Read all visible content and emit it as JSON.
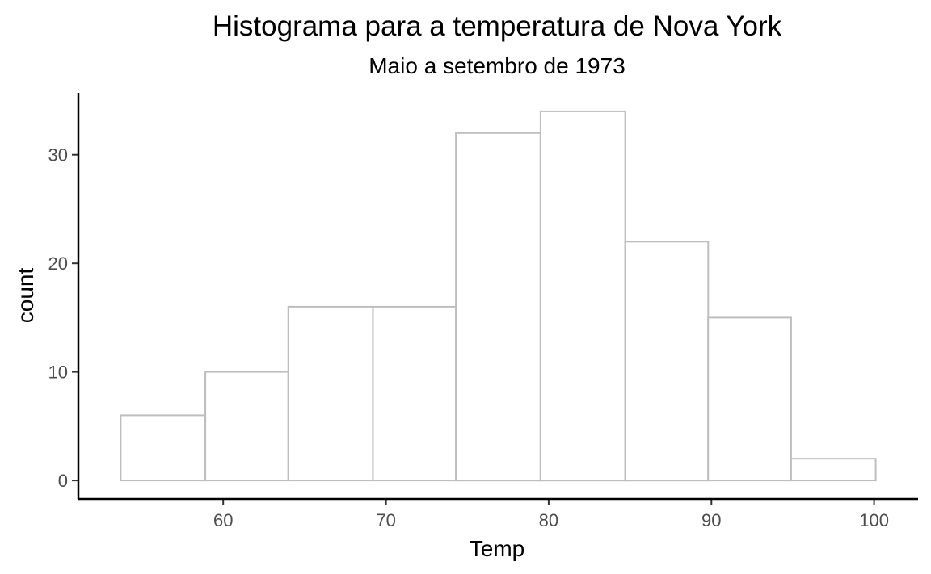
{
  "chart_data": {
    "type": "bar",
    "title": "Histograma para a temperatura de Nova York",
    "subtitle": "Maio a setembro de 1973",
    "xlabel": "Temp",
    "ylabel": "count",
    "bin_edges": [
      53.7,
      58.9,
      64.0,
      69.2,
      74.3,
      79.5,
      84.7,
      89.8,
      94.9,
      100.1
    ],
    "values": [
      6,
      10,
      16,
      16,
      32,
      34,
      22,
      15,
      2
    ],
    "xlim": [
      51.1,
      102.7
    ],
    "ylim": [
      -1.7,
      35.7
    ],
    "x_ticks": [
      60,
      70,
      80,
      90,
      100
    ],
    "x_tick_labels": [
      "60",
      "70",
      "80",
      "90",
      "100"
    ],
    "y_ticks": [
      0,
      10,
      20,
      30
    ],
    "y_tick_labels": [
      "0",
      "10",
      "20",
      "30"
    ],
    "grid": false,
    "bar_fill": "#ffffff",
    "bar_outline": "#bebebe"
  }
}
